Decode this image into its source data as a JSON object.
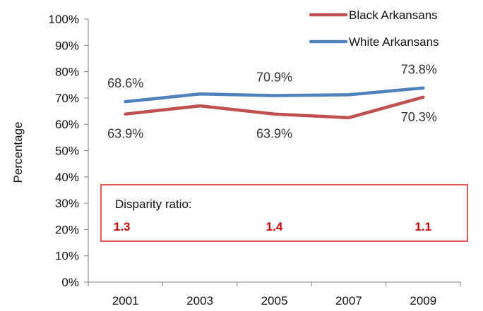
{
  "chart_data": {
    "type": "line",
    "title": "",
    "xlabel": "",
    "ylabel": "Percentage",
    "x": [
      "2001",
      "2003",
      "2005",
      "2007",
      "2009"
    ],
    "ylim": [
      0,
      100
    ],
    "y_ticks": [
      "0%",
      "10%",
      "20%",
      "30%",
      "40%",
      "50%",
      "60%",
      "70%",
      "80%",
      "90%",
      "100%"
    ],
    "legend_position": "top-right",
    "series": [
      {
        "name": "Black Arkansans",
        "color": "#c0504d",
        "values": [
          63.9,
          67.0,
          63.9,
          62.5,
          70.3
        ],
        "data_labels": [
          {
            "index": 0,
            "text": "63.9%"
          },
          {
            "index": 2,
            "text": "63.9%"
          },
          {
            "index": 4,
            "text": "70.3%"
          }
        ]
      },
      {
        "name": "White Arkansans",
        "color": "#4f81bd",
        "values": [
          68.6,
          71.5,
          70.9,
          71.2,
          73.8
        ],
        "data_labels": [
          {
            "index": 0,
            "text": "68.6%"
          },
          {
            "index": 2,
            "text": "70.9%"
          },
          {
            "index": 4,
            "text": "73.8%"
          }
        ]
      }
    ],
    "annotation": {
      "title": "Disparity ratio:",
      "border_color": "#e02020",
      "value_color": "#c00000",
      "values": [
        {
          "index": 0,
          "text": "1.3"
        },
        {
          "index": 2,
          "text": "1.4"
        },
        {
          "index": 4,
          "text": "1.1"
        }
      ]
    }
  }
}
